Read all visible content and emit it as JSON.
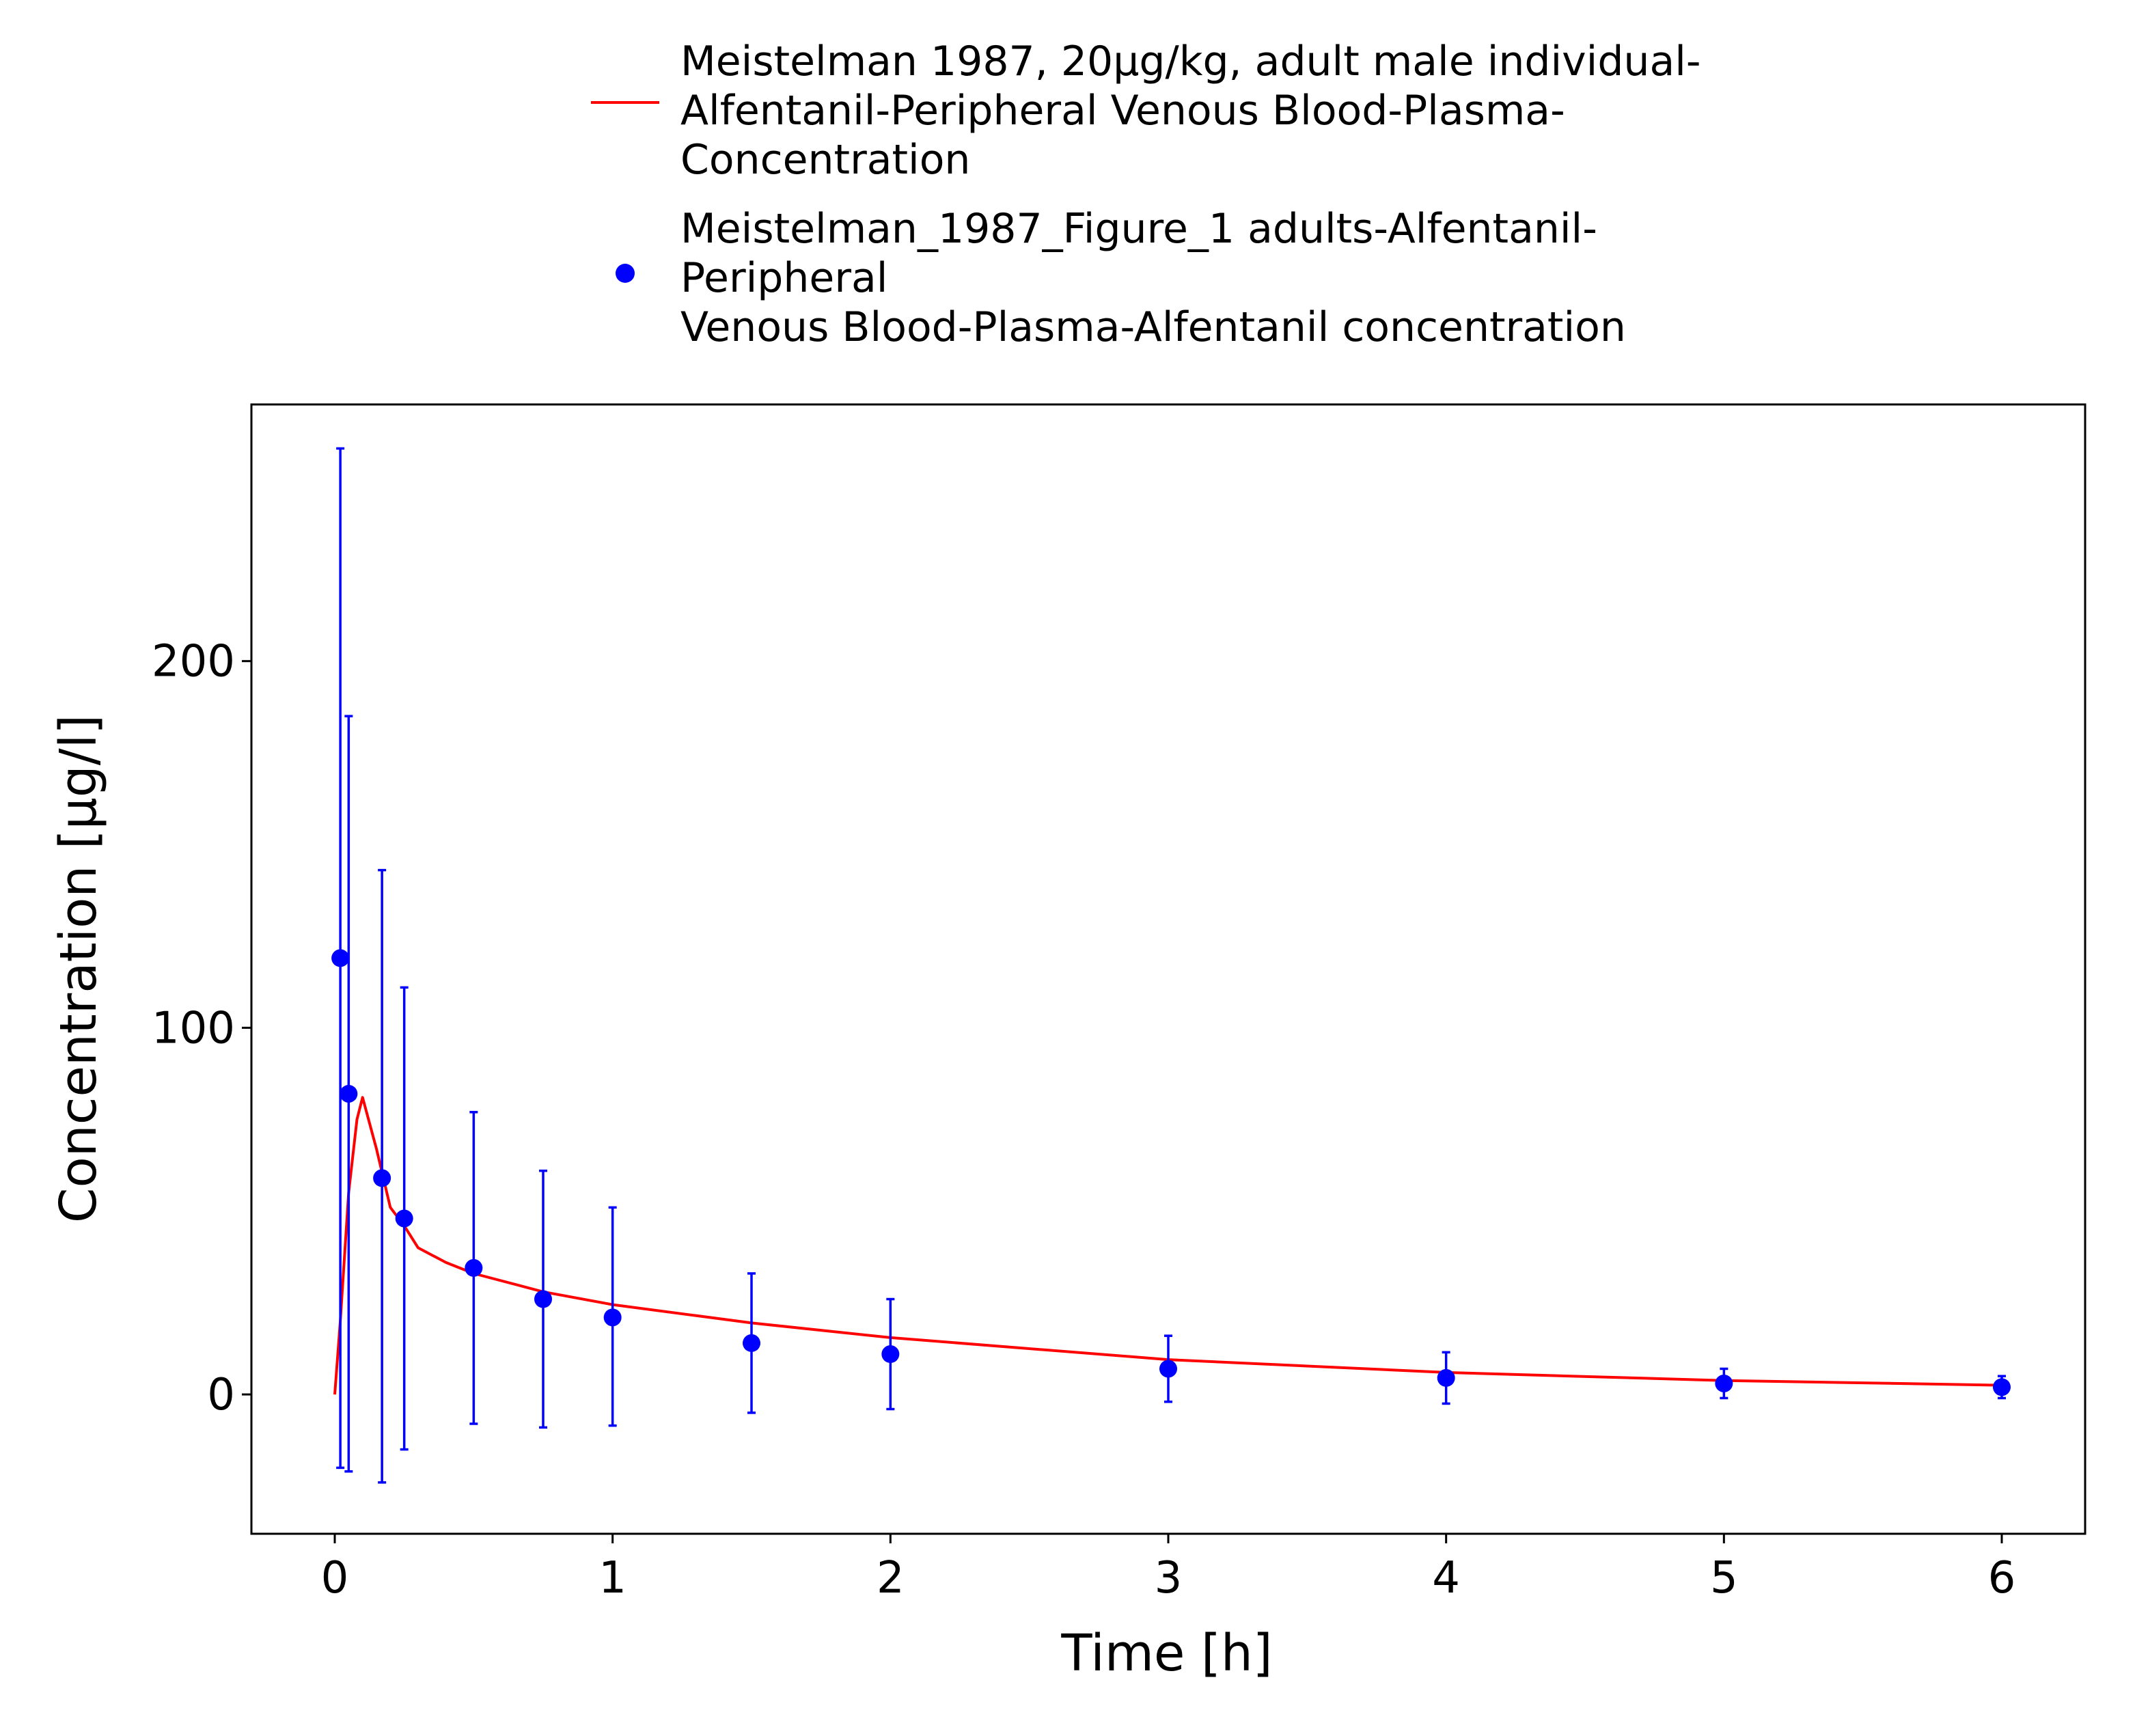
{
  "chart_data": {
    "type": "line",
    "xlabel": "Time [h]",
    "ylabel": "Concentration [µg/l]",
    "xlim": [
      -0.3,
      6.3
    ],
    "ylim": [
      -38,
      270
    ],
    "x_ticks": [
      0,
      1,
      2,
      3,
      4,
      5,
      6
    ],
    "y_ticks": [
      0,
      100,
      200
    ],
    "grid": false,
    "legend_position": "top",
    "series": [
      {
        "name": "Meistelman 1987, 20µg/kg, adult male individual-Alfentanil-Peripheral Venous Blood-Plasma-Concentration",
        "legend_lines": [
          "Meistelman 1987, 20µg/kg, adult male individual-",
          "Alfentanil-Peripheral Venous Blood-Plasma-",
          "Concentration"
        ],
        "kind": "line",
        "color": "#ff0000",
        "x": [
          0,
          0.02,
          0.05,
          0.08,
          0.1,
          0.15,
          0.2,
          0.25,
          0.3,
          0.4,
          0.5,
          0.75,
          1.0,
          1.5,
          2.0,
          3.0,
          4.0,
          5.0,
          6.0
        ],
        "y": [
          0,
          20,
          55,
          75,
          81,
          67,
          51,
          46,
          40,
          36,
          33,
          28,
          24.5,
          19.5,
          15.5,
          9.5,
          6,
          3.8,
          2.5
        ]
      },
      {
        "name": "Meistelman_1987_Figure_1 adults-Alfentanil-Peripheral Venous Blood-Plasma-Alfentanil concentration",
        "legend_lines": [
          "Meistelman_1987_Figure_1 adults-Alfentanil-",
          "Peripheral",
          "Venous Blood-Plasma-Alfentanil concentration"
        ],
        "kind": "scatter",
        "color": "#0000ff",
        "x": [
          0.02,
          0.05,
          0.17,
          0.25,
          0.5,
          0.75,
          1.0,
          1.5,
          2.0,
          3.0,
          4.0,
          5.0,
          6.0
        ],
        "y": [
          119,
          82,
          59,
          48,
          34.5,
          26,
          21,
          14,
          11,
          7,
          4.5,
          3,
          2
        ],
        "err_low": [
          -20,
          -21,
          -24,
          -15,
          -8,
          -9,
          -8.5,
          -5,
          -4,
          -2,
          -2.5,
          -1,
          -1
        ],
        "err_high": [
          258,
          185,
          143,
          111,
          77,
          61,
          51,
          33,
          26,
          16,
          11.5,
          7,
          5
        ]
      }
    ]
  }
}
